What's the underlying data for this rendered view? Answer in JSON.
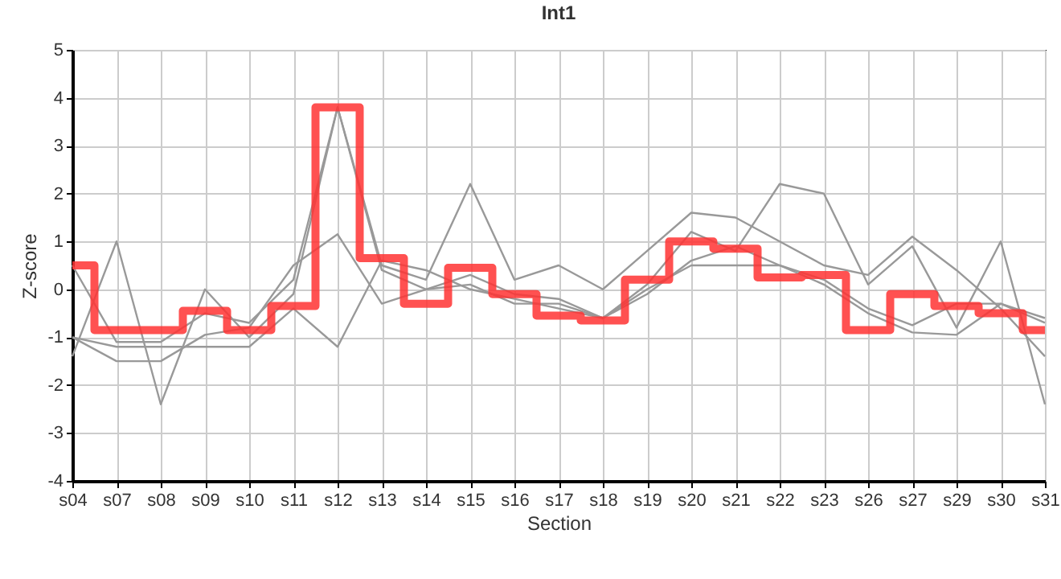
{
  "chart_data": {
    "type": "line",
    "title": "Int1",
    "xlabel": "Section",
    "ylabel": "Z-score",
    "categories": [
      "s04",
      "s07",
      "s08",
      "s09",
      "s10",
      "s11",
      "s12",
      "s13",
      "s14",
      "s15",
      "s16",
      "s17",
      "s18",
      "s19",
      "s20",
      "s21",
      "s22",
      "s23",
      "s26",
      "s27",
      "s29",
      "s30",
      "s31"
    ],
    "series": [
      {
        "type": "line",
        "color": "#999999",
        "values": [
          0.5,
          -1.1,
          -1.1,
          -0.5,
          -0.7,
          0.2,
          3.8,
          0.5,
          0.2,
          2.2,
          0.2,
          0.5,
          0,
          0.8,
          1.6,
          1.5,
          1.0,
          0.5,
          0.3,
          1.1,
          0.4,
          -0.4,
          -1.4
        ]
      },
      {
        "type": "line",
        "color": "#999999",
        "values": [
          -1.4,
          1.0,
          -2.4,
          0.0,
          -1.0,
          -0.1,
          3.8,
          0.4,
          0.0,
          0.3,
          -0.1,
          -0.2,
          -0.6,
          0.1,
          1.2,
          0.8,
          2.2,
          2.0,
          0.1,
          0.9,
          -0.8,
          1.0,
          -2.4
        ]
      },
      {
        "type": "line",
        "color": "#999999",
        "values": [
          -1.0,
          -1.5,
          -1.5,
          -0.95,
          -0.8,
          0.5,
          1.15,
          -0.3,
          0.0,
          0.1,
          -0.3,
          -0.3,
          -0.6,
          -0.1,
          0.6,
          0.9,
          0.5,
          0.2,
          -0.4,
          -0.75,
          -0.3,
          -0.3,
          -0.7
        ]
      },
      {
        "type": "line",
        "color": "#999999",
        "values": [
          -1.0,
          -1.2,
          -1.2,
          -1.2,
          -1.2,
          -0.4,
          -1.2,
          0.6,
          0.4,
          0.0,
          -0.2,
          -0.4,
          -0.6,
          0.0,
          0.5,
          0.5,
          0.5,
          0.1,
          -0.5,
          -0.9,
          -0.95,
          -0.3,
          -0.6
        ]
      },
      {
        "type": "step",
        "color": "#ff3333",
        "values": [
          0.5,
          -0.85,
          -0.85,
          -0.45,
          -0.85,
          -0.35,
          3.8,
          0.65,
          -0.3,
          0.45,
          -0.1,
          -0.55,
          -0.65,
          0.2,
          1.0,
          0.85,
          0.25,
          0.3,
          -0.85,
          -0.1,
          -0.35,
          -0.5,
          -0.85
        ]
      }
    ],
    "ylim": [
      -4,
      5
    ],
    "yticks": [
      -4,
      -3,
      -2,
      -1,
      0,
      1,
      2,
      3,
      4,
      5
    ],
    "grid": true,
    "marker": "none",
    "line_style": "solid"
  }
}
